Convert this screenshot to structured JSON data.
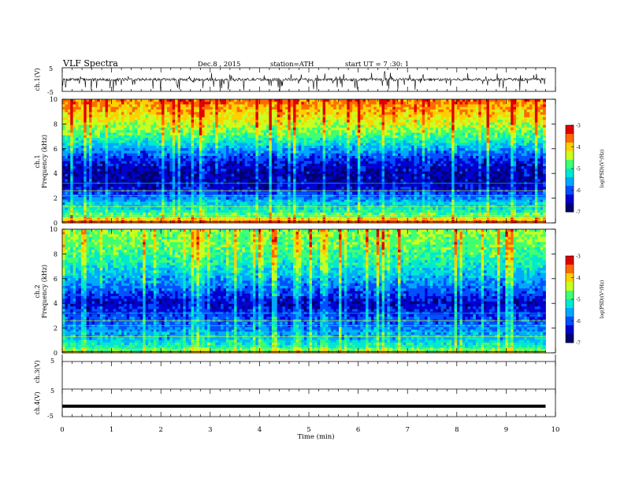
{
  "header": {
    "title": "VLF Spectra",
    "date": "Dec.8 , 2015",
    "station": "station=ATH",
    "start": "start UT = 7 :30: 1"
  },
  "colors": {
    "colormap": [
      "#000070",
      "#0000d0",
      "#0050ff",
      "#00a8ff",
      "#00e8d0",
      "#40ff70",
      "#c8ff20",
      "#ffd000",
      "#ff6a00",
      "#e00000",
      "#ffffff"
    ],
    "trace": "#000000",
    "axis": "#000000"
  },
  "chart_data": [
    {
      "id": "ch1-waveform",
      "type": "line",
      "ylabel": "ch.1(V)",
      "ylim": [
        -5,
        5
      ],
      "yticks": [
        "5",
        "-5"
      ],
      "xlim": [
        0,
        10
      ],
      "description_level": "noisy trace near 0 V with frequent negative spikes"
    },
    {
      "id": "ch1-spectrogram",
      "type": "heatmap",
      "ylabel_channel": "ch.1",
      "ylabel": "Frequency (kHz)",
      "ylim": [
        0,
        10
      ],
      "yticks": [
        "0",
        "2",
        "4",
        "6",
        "8",
        "10"
      ],
      "xlim": [
        0,
        10
      ],
      "colorbar": {
        "label": "log(PSD)(V²/Hz)",
        "range": [
          -7,
          -3
        ],
        "ticks": [
          "-3",
          "-4",
          "-5",
          "-6",
          "-7"
        ]
      },
      "data_end_min": 9.8,
      "band_profile_khz": [
        [
          0,
          -3.6
        ],
        [
          0.5,
          -4.4
        ],
        [
          1,
          -5.2
        ],
        [
          1.5,
          -5.4
        ],
        [
          2,
          -5.8
        ],
        [
          3,
          -6.5
        ],
        [
          4,
          -6.6
        ],
        [
          5,
          -6.3
        ],
        [
          6,
          -5.6
        ],
        [
          7,
          -4.9
        ],
        [
          8,
          -4.4
        ],
        [
          9,
          -4.0
        ],
        [
          10,
          -3.6
        ]
      ]
    },
    {
      "id": "ch2-spectrogram",
      "type": "heatmap",
      "ylabel_channel": "ch.2",
      "ylabel": "Frequency (kHz)",
      "ylim": [
        0,
        10
      ],
      "yticks": [
        "0",
        "2",
        "4",
        "6",
        "8",
        "10"
      ],
      "xlim": [
        0,
        10
      ],
      "colorbar": {
        "label": "log(PSD)(V²/Hz)",
        "range": [
          -7,
          -3
        ],
        "ticks": [
          "-3",
          "-4",
          "-5",
          "-6",
          "-7"
        ]
      },
      "data_end_min": 9.8,
      "band_profile_khz": [
        [
          0,
          -4.6
        ],
        [
          0.5,
          -5.0
        ],
        [
          1,
          -5.4
        ],
        [
          1.5,
          -5.6
        ],
        [
          2,
          -5.8
        ],
        [
          3,
          -6.1
        ],
        [
          4,
          -6.5
        ],
        [
          5,
          -6.0
        ],
        [
          6,
          -5.6
        ],
        [
          7,
          -5.2
        ],
        [
          8,
          -4.9
        ],
        [
          9,
          -4.7
        ],
        [
          10,
          -4.6
        ]
      ]
    },
    {
      "id": "ch3-waveform",
      "type": "line",
      "ylabel": "ch.3(V)",
      "ylim": [
        -5,
        5
      ],
      "yticks": [
        "5"
      ],
      "xlim": [
        0,
        10
      ]
    },
    {
      "id": "ch4-waveform",
      "type": "line",
      "ylabel": "ch.4(V)",
      "ylim": [
        -5,
        5
      ],
      "yticks": [
        "5",
        "-5"
      ],
      "xlim": [
        0,
        10
      ],
      "level_v": -1.2
    }
  ],
  "xaxis": {
    "label": "Time (min)",
    "ticks": [
      "0",
      "1",
      "2",
      "3",
      "4",
      "5",
      "6",
      "7",
      "8",
      "9",
      "10"
    ]
  }
}
